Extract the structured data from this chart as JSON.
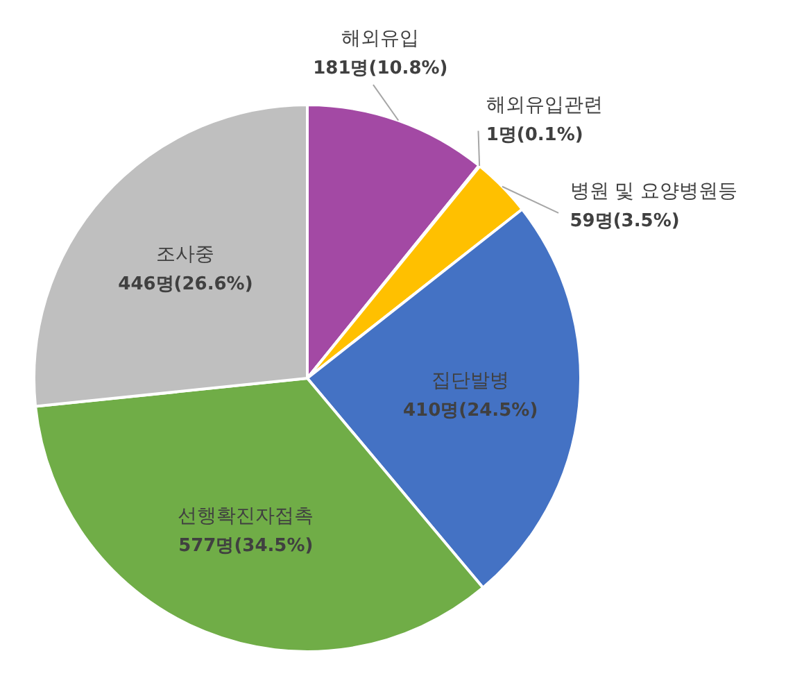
{
  "chart_data": {
    "type": "pie",
    "categories": [
      "해외유입",
      "해외유입관련",
      "병원 및 요양병원등",
      "집단발병",
      "선행확진자접촉",
      "조사중"
    ],
    "values": [
      181,
      1,
      59,
      410,
      577,
      446
    ],
    "value_labels": [
      "181명(10.8%)",
      "1명(0.1%)",
      "59명(3.5%)",
      "410명(24.5%)",
      "577명(34.5%)",
      "446명(26.6%)"
    ],
    "colors": [
      "#a349a4",
      "#ed7d31",
      "#ffc000",
      "#4472c4",
      "#70ad47",
      "#bfbfbf"
    ]
  }
}
